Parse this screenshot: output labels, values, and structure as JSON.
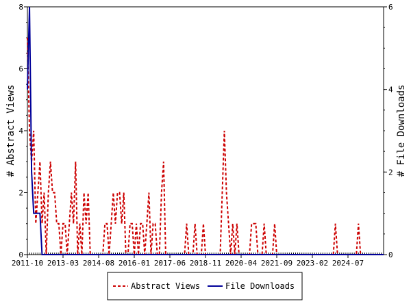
{
  "chart_data": {
    "type": "line",
    "x_tick_labels": [
      "2011-10",
      "2013-03",
      "2014-08",
      "2016-01",
      "2017-06",
      "2018-11",
      "2020-04",
      "2021-09",
      "2023-02",
      "2024-07"
    ],
    "x_range": [
      "2011-10",
      "2025-12"
    ],
    "y_left": {
      "label": "# Abstract Views",
      "range": [
        0,
        8
      ],
      "ticks": [
        0,
        2,
        4,
        6,
        8
      ]
    },
    "y_right": {
      "label": "# File Downloads",
      "range": [
        0,
        6
      ],
      "ticks": [
        0,
        2,
        4,
        6
      ]
    },
    "grid": false,
    "legend_position": "bottom",
    "series": [
      {
        "name": "Abstract Views",
        "axis": "left",
        "color": "#cc0000",
        "style": "dashed",
        "points": [
          [
            "2011-10",
            7
          ],
          [
            "2011-11",
            4
          ],
          [
            "2011-12",
            3
          ],
          [
            "2012-01",
            4
          ],
          [
            "2012-02",
            1
          ],
          [
            "2012-03",
            2
          ],
          [
            "2012-04",
            3
          ],
          [
            "2012-05",
            1
          ],
          [
            "2012-06",
            2
          ],
          [
            "2012-07",
            0
          ],
          [
            "2012-08",
            2
          ],
          [
            "2012-09",
            3
          ],
          [
            "2012-10",
            2
          ],
          [
            "2012-11",
            2
          ],
          [
            "2012-12",
            1
          ],
          [
            "2013-01",
            1
          ],
          [
            "2013-02",
            0
          ],
          [
            "2013-03",
            1
          ],
          [
            "2013-04",
            1
          ],
          [
            "2013-05",
            0
          ],
          [
            "2013-06",
            1
          ],
          [
            "2013-07",
            2
          ],
          [
            "2013-08",
            1
          ],
          [
            "2013-09",
            3
          ],
          [
            "2013-10",
            0
          ],
          [
            "2013-11",
            1
          ],
          [
            "2013-12",
            0
          ],
          [
            "2014-01",
            2
          ],
          [
            "2014-02",
            1
          ],
          [
            "2014-03",
            2
          ],
          [
            "2014-04",
            0
          ],
          [
            "2014-05",
            0
          ],
          [
            "2014-06",
            0
          ],
          [
            "2014-07",
            0
          ],
          [
            "2014-08",
            0
          ],
          [
            "2014-09",
            0
          ],
          [
            "2014-10",
            0
          ],
          [
            "2014-11",
            1
          ],
          [
            "2014-12",
            1
          ],
          [
            "2015-01",
            0
          ],
          [
            "2015-02",
            1
          ],
          [
            "2015-03",
            2
          ],
          [
            "2015-04",
            1
          ],
          [
            "2015-05",
            2
          ],
          [
            "2015-06",
            2
          ],
          [
            "2015-07",
            1
          ],
          [
            "2015-08",
            2
          ],
          [
            "2015-09",
            0
          ],
          [
            "2015-10",
            0
          ],
          [
            "2015-11",
            1
          ],
          [
            "2015-12",
            1
          ],
          [
            "2016-01",
            0
          ],
          [
            "2016-02",
            1
          ],
          [
            "2016-03",
            0
          ],
          [
            "2016-04",
            1
          ],
          [
            "2016-05",
            1
          ],
          [
            "2016-06",
            0
          ],
          [
            "2016-07",
            1
          ],
          [
            "2016-08",
            2
          ],
          [
            "2016-09",
            0
          ],
          [
            "2016-10",
            1
          ],
          [
            "2016-11",
            1
          ],
          [
            "2016-12",
            0
          ],
          [
            "2017-01",
            0
          ],
          [
            "2017-02",
            2
          ],
          [
            "2017-03",
            3
          ],
          [
            "2017-04",
            0
          ],
          [
            "2017-05",
            0
          ],
          [
            "2017-06",
            0
          ],
          [
            "2017-07",
            0
          ],
          [
            "2017-08",
            0
          ],
          [
            "2017-09",
            0
          ],
          [
            "2017-10",
            0
          ],
          [
            "2017-11",
            0
          ],
          [
            "2017-12",
            0
          ],
          [
            "2018-01",
            0
          ],
          [
            "2018-02",
            1
          ],
          [
            "2018-03",
            0
          ],
          [
            "2018-04",
            0
          ],
          [
            "2018-05",
            0
          ],
          [
            "2018-06",
            1
          ],
          [
            "2018-07",
            0
          ],
          [
            "2018-08",
            0
          ],
          [
            "2018-09",
            0
          ],
          [
            "2018-10",
            1
          ],
          [
            "2018-11",
            0
          ],
          [
            "2018-12",
            0
          ],
          [
            "2019-01",
            0
          ],
          [
            "2019-02",
            0
          ],
          [
            "2019-03",
            0
          ],
          [
            "2019-04",
            0
          ],
          [
            "2019-05",
            0
          ],
          [
            "2019-06",
            0
          ],
          [
            "2019-07",
            2
          ],
          [
            "2019-08",
            4
          ],
          [
            "2019-09",
            2
          ],
          [
            "2019-10",
            1
          ],
          [
            "2019-11",
            0
          ],
          [
            "2019-12",
            1
          ],
          [
            "2020-01",
            0
          ],
          [
            "2020-02",
            1
          ],
          [
            "2020-03",
            0
          ],
          [
            "2020-04",
            0
          ],
          [
            "2020-05",
            0
          ],
          [
            "2020-06",
            0
          ],
          [
            "2020-07",
            0
          ],
          [
            "2020-08",
            0
          ],
          [
            "2020-09",
            1
          ],
          [
            "2020-10",
            1
          ],
          [
            "2020-11",
            1
          ],
          [
            "2020-12",
            0
          ],
          [
            "2021-01",
            0
          ],
          [
            "2021-02",
            0
          ],
          [
            "2021-03",
            1
          ],
          [
            "2021-04",
            0
          ],
          [
            "2021-05",
            0
          ],
          [
            "2021-06",
            0
          ],
          [
            "2021-07",
            0
          ],
          [
            "2021-08",
            1
          ],
          [
            "2021-09",
            0
          ],
          [
            "2021-10",
            0
          ],
          [
            "2021-11",
            0
          ],
          [
            "2021-12",
            0
          ],
          [
            "2022-01",
            0
          ],
          [
            "2022-02",
            0
          ],
          [
            "2022-03",
            0
          ],
          [
            "2022-04",
            0
          ],
          [
            "2022-05",
            0
          ],
          [
            "2022-06",
            0
          ],
          [
            "2022-07",
            0
          ],
          [
            "2022-08",
            0
          ],
          [
            "2022-09",
            0
          ],
          [
            "2022-10",
            0
          ],
          [
            "2022-11",
            0
          ],
          [
            "2022-12",
            0
          ],
          [
            "2023-01",
            0
          ],
          [
            "2023-02",
            0
          ],
          [
            "2023-03",
            0
          ],
          [
            "2023-04",
            0
          ],
          [
            "2023-05",
            0
          ],
          [
            "2023-06",
            0
          ],
          [
            "2023-07",
            0
          ],
          [
            "2023-08",
            0
          ],
          [
            "2023-09",
            0
          ],
          [
            "2023-10",
            0
          ],
          [
            "2023-11",
            0
          ],
          [
            "2023-12",
            0
          ],
          [
            "2024-01",
            1
          ],
          [
            "2024-02",
            0
          ],
          [
            "2024-03",
            0
          ],
          [
            "2024-04",
            0
          ],
          [
            "2024-05",
            0
          ],
          [
            "2024-06",
            0
          ],
          [
            "2024-07",
            0
          ],
          [
            "2024-08",
            0
          ],
          [
            "2024-09",
            0
          ],
          [
            "2024-10",
            0
          ],
          [
            "2024-11",
            0
          ],
          [
            "2024-12",
            1
          ],
          [
            "2025-01",
            0
          ],
          [
            "2025-02",
            0
          ],
          [
            "2025-03",
            0
          ],
          [
            "2025-04",
            0
          ],
          [
            "2025-05",
            0
          ],
          [
            "2025-06",
            0
          ],
          [
            "2025-07",
            0
          ],
          [
            "2025-08",
            0
          ],
          [
            "2025-09",
            0
          ],
          [
            "2025-10",
            0
          ],
          [
            "2025-11",
            0
          ],
          [
            "2025-12",
            0
          ]
        ]
      },
      {
        "name": "File Downloads",
        "axis": "right",
        "color": "#000099",
        "style": "solid",
        "points": [
          [
            "2011-10",
            4
          ],
          [
            "2011-11",
            6
          ],
          [
            "2011-12",
            2
          ],
          [
            "2012-01",
            1
          ],
          [
            "2012-02",
            1
          ],
          [
            "2012-03",
            1
          ],
          [
            "2012-04",
            1
          ],
          [
            "2012-05",
            0
          ],
          [
            "2012-06",
            0
          ],
          [
            "2025-12",
            0
          ]
        ]
      }
    ]
  }
}
